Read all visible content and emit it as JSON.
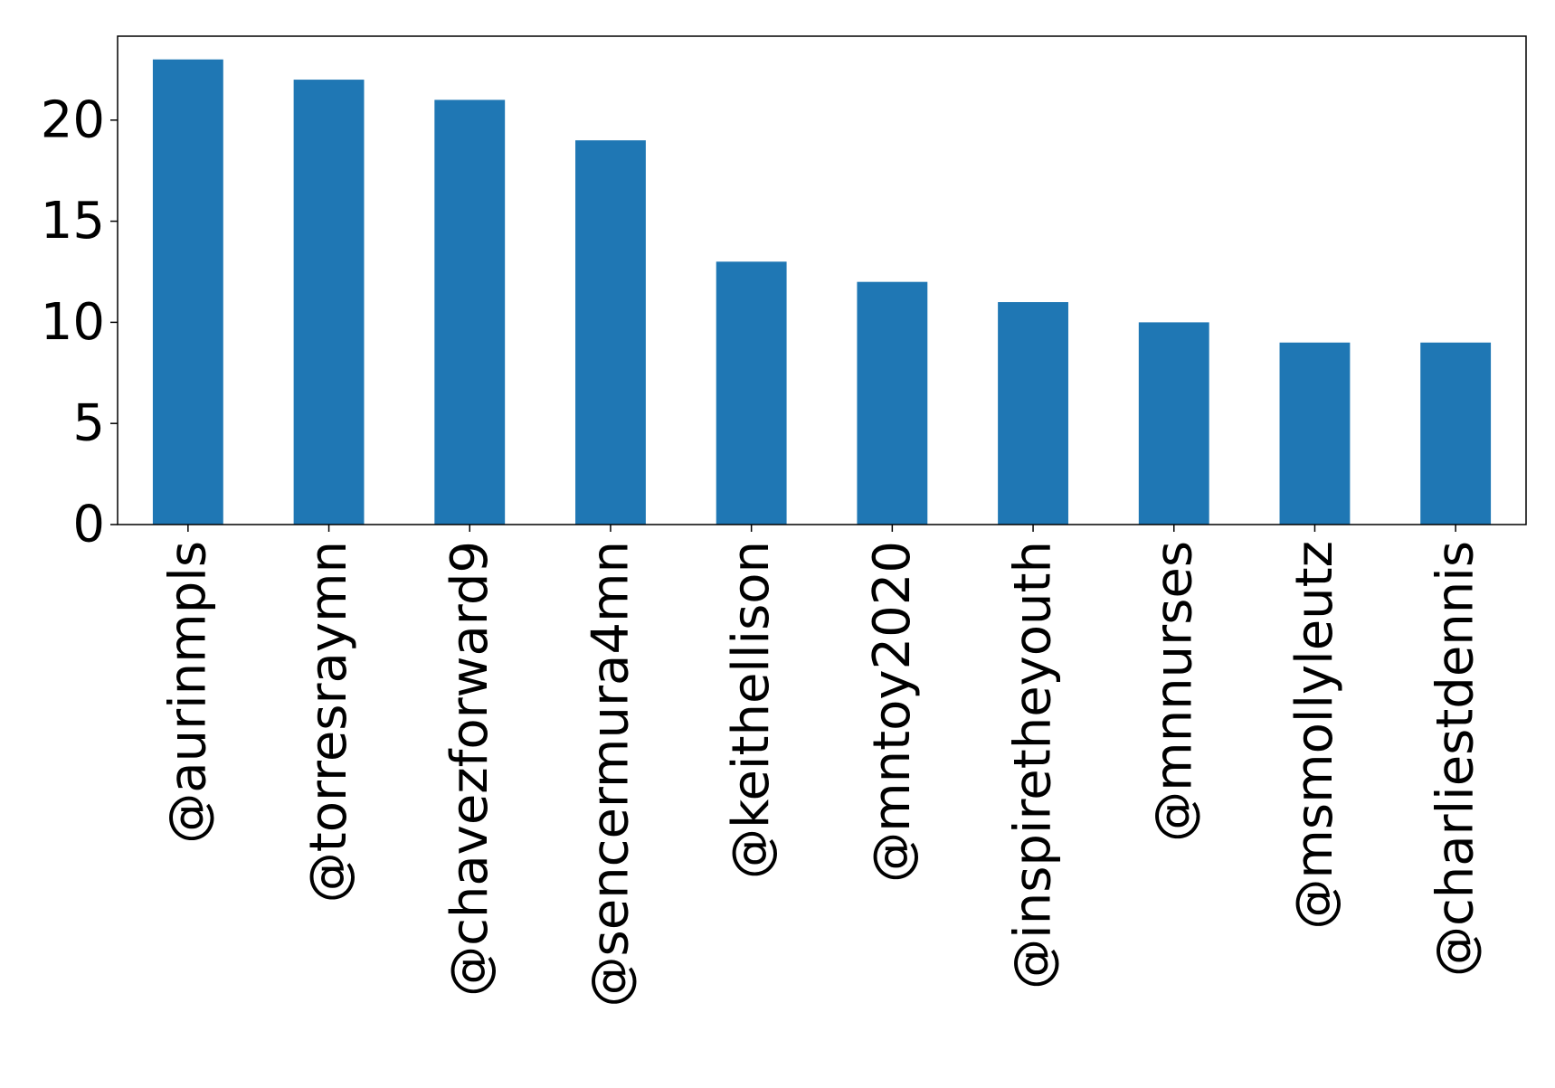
{
  "chart_data": {
    "type": "bar",
    "title": "",
    "xlabel": "",
    "ylabel": "",
    "categories": [
      "@aurinmpls",
      "@torresraymn",
      "@chavezforward9",
      "@sencermura4mn",
      "@keithellison",
      "@mntoy2020",
      "@inspiretheyouth",
      "@mnnurses",
      "@msmollyleutz",
      "@charliestdennis"
    ],
    "values": [
      23,
      22,
      21,
      19,
      13,
      12,
      11,
      10,
      9,
      9
    ],
    "ylim": [
      0,
      24.15
    ],
    "yticks": [
      0,
      5,
      10,
      15,
      20
    ],
    "ytick_labels": [
      "0",
      "5",
      "10",
      "15",
      "20"
    ],
    "bar_color": "#1f77b4",
    "grid": false,
    "legend": "none"
  }
}
